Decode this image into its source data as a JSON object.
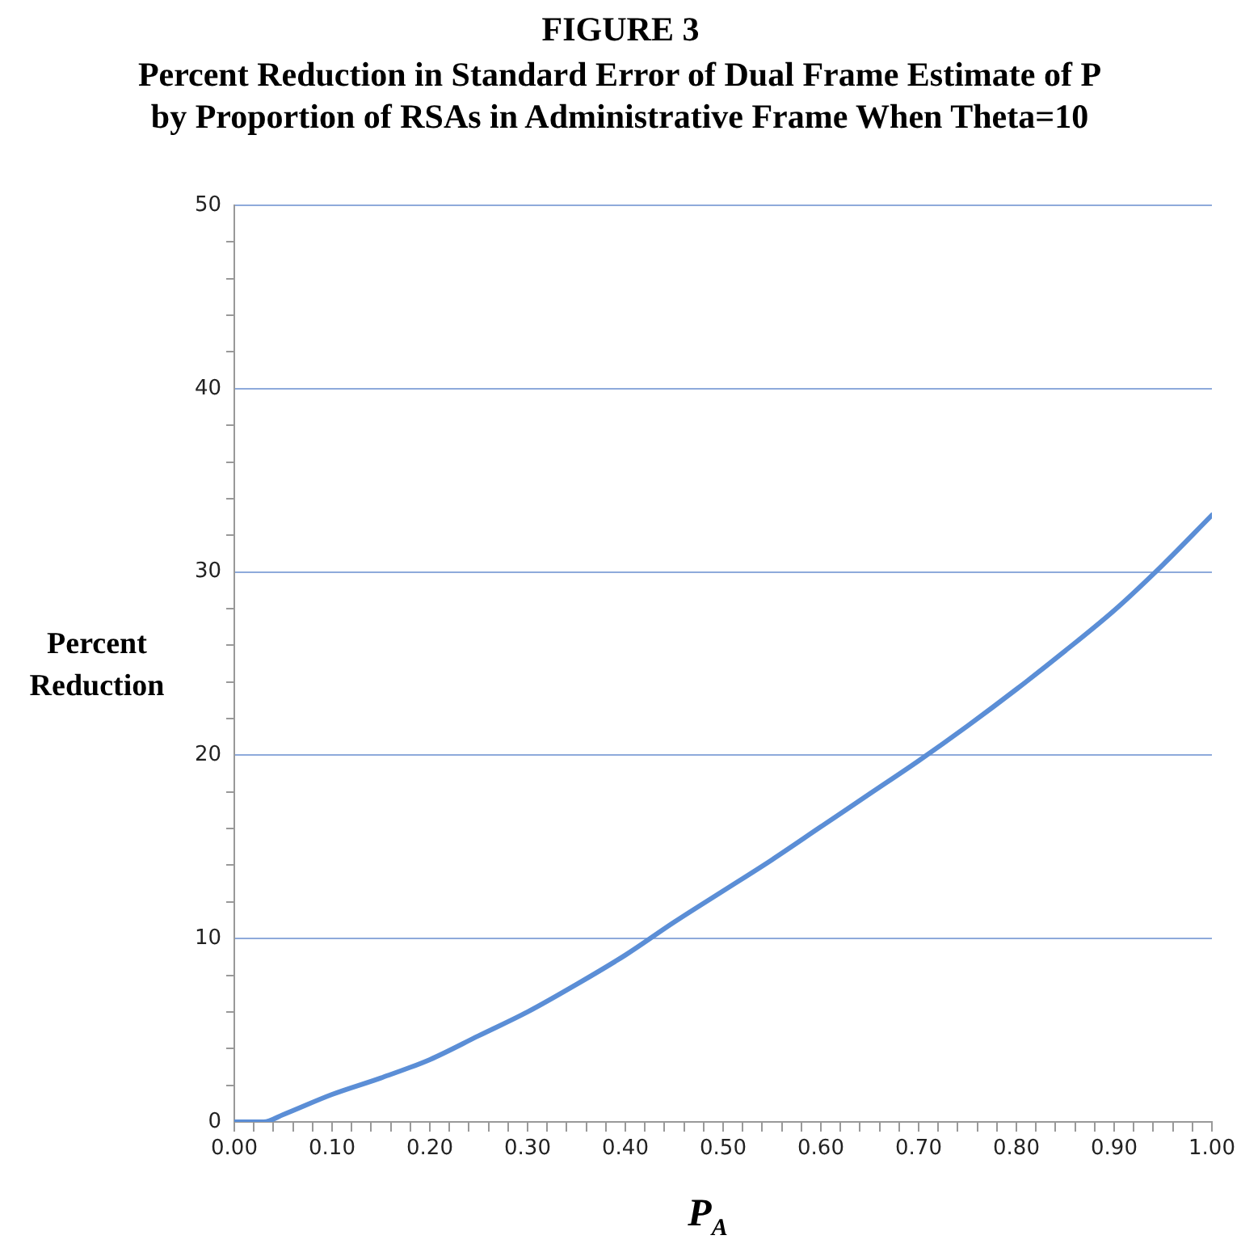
{
  "chart_data": {
    "type": "line",
    "title": "FIGURE 3",
    "subtitle": "Percent Reduction in Standard Error of Dual Frame Estimate of P by Proportion of RSAs in Administrative Frame When Theta=10",
    "xlabel": "P$_{A}$",
    "ylabel": "Percent Reduction",
    "x": [
      0,
      0.02,
      0.03,
      0.05,
      0.1,
      0.15,
      0.2,
      0.25,
      0.3,
      0.35,
      0.4,
      0.45,
      0.5,
      0.55,
      0.6,
      0.65,
      0.7,
      0.75,
      0.8,
      0.85,
      0.9,
      0.95,
      1.0
    ],
    "series": [
      {
        "color": "#5b8ed6",
        "values": [
          0,
          0,
          0,
          0.4,
          1.5,
          2.4,
          3.4,
          4.7,
          6.0,
          7.5,
          9.1,
          10.9,
          12.6,
          14.3,
          16.1,
          17.9,
          19.7,
          21.6,
          23.6,
          25.7,
          27.9,
          30.4,
          33.1
        ]
      }
    ],
    "xlim": [
      0,
      1
    ],
    "ylim": [
      0,
      50
    ],
    "xticks": [
      {
        "value": 0,
        "label": "0.00"
      },
      {
        "value": 0.02,
        "label": null
      },
      {
        "value": 0.04,
        "label": null
      },
      {
        "value": 0.06,
        "label": null
      },
      {
        "value": 0.08,
        "label": null
      },
      {
        "value": 0.1,
        "label": "0.10"
      },
      {
        "value": 0.12,
        "label": null
      },
      {
        "value": 0.14,
        "label": null
      },
      {
        "value": 0.16,
        "label": null
      },
      {
        "value": 0.18,
        "label": null
      },
      {
        "value": 0.2,
        "label": "0.20"
      },
      {
        "value": 0.22,
        "label": null
      },
      {
        "value": 0.24,
        "label": null
      },
      {
        "value": 0.26,
        "label": null
      },
      {
        "value": 0.28,
        "label": null
      },
      {
        "value": 0.3,
        "label": "0.30"
      },
      {
        "value": 0.32,
        "label": null
      },
      {
        "value": 0.34,
        "label": null
      },
      {
        "value": 0.36,
        "label": null
      },
      {
        "value": 0.38,
        "label": null
      },
      {
        "value": 0.4,
        "label": "0.40"
      },
      {
        "value": 0.42,
        "label": null
      },
      {
        "value": 0.44,
        "label": null
      },
      {
        "value": 0.46,
        "label": null
      },
      {
        "value": 0.48,
        "label": null
      },
      {
        "value": 0.5,
        "label": "0.50"
      },
      {
        "value": 0.52,
        "label": null
      },
      {
        "value": 0.54,
        "label": null
      },
      {
        "value": 0.56,
        "label": null
      },
      {
        "value": 0.58,
        "label": null
      },
      {
        "value": 0.6,
        "label": "0.60"
      },
      {
        "value": 0.62,
        "label": null
      },
      {
        "value": 0.64,
        "label": null
      },
      {
        "value": 0.66,
        "label": null
      },
      {
        "value": 0.68,
        "label": null
      },
      {
        "value": 0.7,
        "label": "0.70"
      },
      {
        "value": 0.72,
        "label": null
      },
      {
        "value": 0.74,
        "label": null
      },
      {
        "value": 0.76,
        "label": null
      },
      {
        "value": 0.78,
        "label": null
      },
      {
        "value": 0.8,
        "label": "0.80"
      },
      {
        "value": 0.82,
        "label": null
      },
      {
        "value": 0.84,
        "label": null
      },
      {
        "value": 0.86,
        "label": null
      },
      {
        "value": 0.88,
        "label": null
      },
      {
        "value": 0.9,
        "label": "0.90"
      },
      {
        "value": 0.92,
        "label": null
      },
      {
        "value": 0.94,
        "label": null
      },
      {
        "value": 0.96,
        "label": null
      },
      {
        "value": 0.98,
        "label": null
      },
      {
        "value": 1.0,
        "label": "1.00"
      }
    ],
    "yticks": [
      0,
      {
        "value": 2,
        "label": null
      },
      {
        "value": 4,
        "label": null
      },
      {
        "value": 6,
        "label": null
      },
      {
        "value": 8,
        "label": null
      },
      10,
      {
        "value": 12,
        "label": null
      },
      {
        "value": 14,
        "label": null
      },
      {
        "value": 16,
        "label": null
      },
      {
        "value": 18,
        "label": null
      },
      20,
      {
        "value": 22,
        "label": null
      },
      {
        "value": 24,
        "label": null
      },
      {
        "value": 26,
        "label": null
      },
      {
        "value": 28,
        "label": null
      },
      30,
      {
        "value": 32,
        "label": null
      },
      {
        "value": 34,
        "label": null
      },
      {
        "value": 36,
        "label": null
      },
      {
        "value": 38,
        "label": null
      },
      40,
      {
        "value": 42,
        "label": null
      },
      {
        "value": 44,
        "label": null
      },
      {
        "value": 46,
        "label": null
      },
      {
        "value": 48,
        "label": null
      },
      50
    ],
    "grid": "y",
    "legend": false,
    "marker": "none",
    "line_style": "solid"
  }
}
